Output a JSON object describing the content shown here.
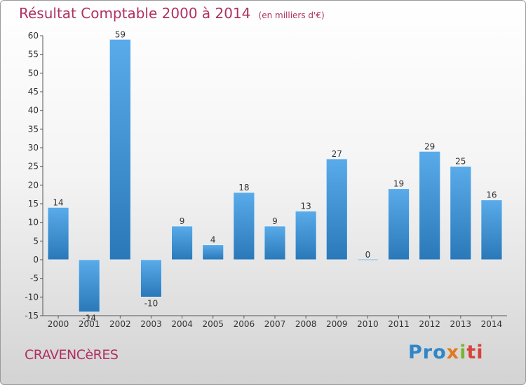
{
  "chart_data": {
    "type": "bar",
    "title": "Résultat Comptable 2000 à 2014",
    "subtitle": "(en milliers d'€)",
    "categories": [
      "2000",
      "2001",
      "2002",
      "2003",
      "2004",
      "2005",
      "2006",
      "2007",
      "2008",
      "2009",
      "2010",
      "2011",
      "2012",
      "2013",
      "2014"
    ],
    "values": [
      14,
      -14,
      59,
      -10,
      9,
      4,
      18,
      9,
      13,
      27,
      0,
      19,
      29,
      25,
      16
    ],
    "ylim": [
      -15,
      60
    ],
    "yticks": [
      60,
      55,
      50,
      45,
      40,
      35,
      30,
      25,
      20,
      15,
      10,
      5,
      0,
      -5,
      -10,
      -15
    ],
    "grid": false,
    "colors": {
      "bar_light": "#5aabea",
      "bar_dark": "#2a78b8",
      "title": "#b03060"
    }
  },
  "footer": {
    "commune": "CRAVENCèRES",
    "logo": {
      "p1": "Pro",
      "p2": "x",
      "p3": "i",
      "p4": "ti"
    }
  }
}
